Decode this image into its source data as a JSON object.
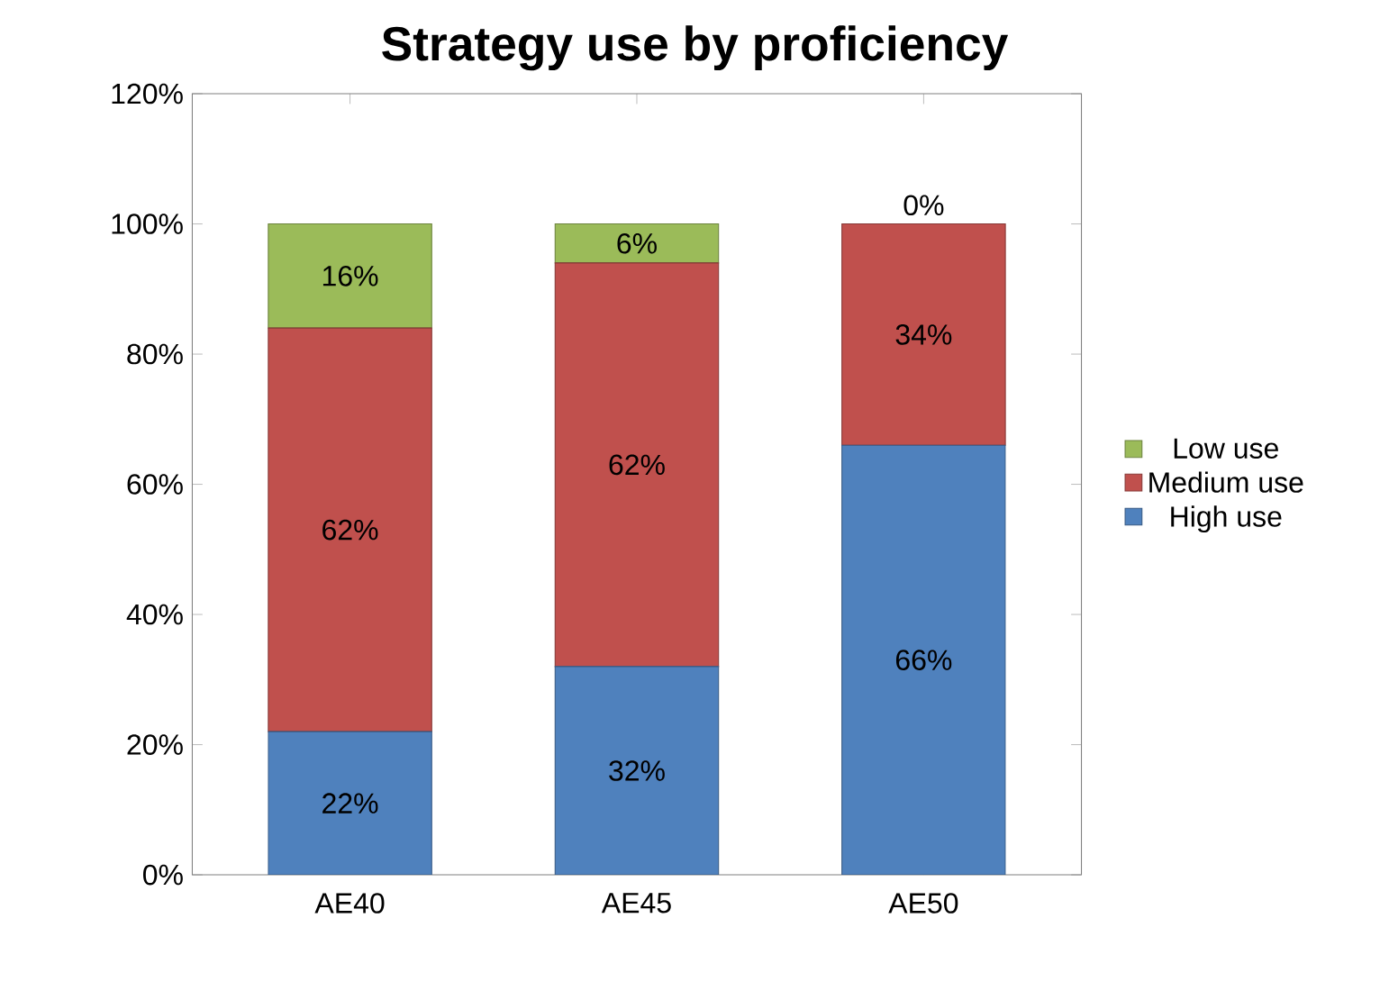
{
  "chart_data": {
    "type": "bar",
    "title": "Strategy use by proficiency",
    "stacked": true,
    "categories": [
      "AE40",
      "AE45",
      "AE50"
    ],
    "series": [
      {
        "name": "High use",
        "color": "#4f81bd",
        "values": [
          22,
          32,
          66
        ],
        "value_labels": [
          "22%",
          "32%",
          "66%"
        ]
      },
      {
        "name": "Medium use",
        "color": "#c0504d",
        "values": [
          62,
          62,
          34
        ],
        "value_labels": [
          "62%",
          "62%",
          "34%"
        ]
      },
      {
        "name": "Low use",
        "color": "#9bbb59",
        "values": [
          16,
          6,
          0
        ],
        "value_labels": [
          "16%",
          "6%",
          "0%"
        ]
      }
    ],
    "ylim": [
      0,
      120
    ],
    "yticks": [
      {
        "value": 0,
        "label": "0%"
      },
      {
        "value": 20,
        "label": "20%"
      },
      {
        "value": 40,
        "label": "40%"
      },
      {
        "value": 60,
        "label": "60%"
      },
      {
        "value": 80,
        "label": "80%"
      },
      {
        "value": 100,
        "label": "100%"
      },
      {
        "value": 120,
        "label": "120%"
      }
    ],
    "legend": "right"
  }
}
